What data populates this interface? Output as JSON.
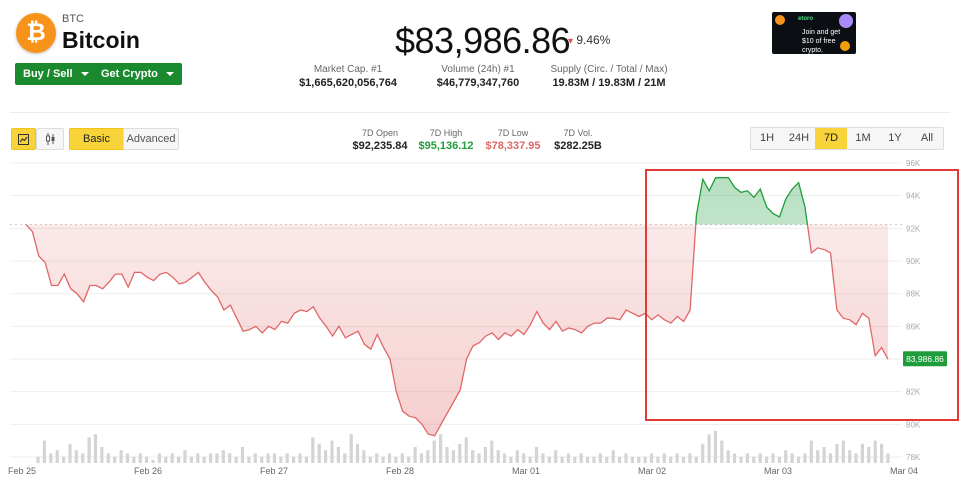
{
  "coin": {
    "symbol": "BTC",
    "name": "Bitcoin",
    "logo_glyph": "₿",
    "logo_color": "#f7931a"
  },
  "actions": {
    "buy_sell": "Buy / Sell",
    "get_crypto": "Get Crypto"
  },
  "price": {
    "value": "$83,986.86",
    "change": "9.46%",
    "change_arrow": "▾"
  },
  "stats": [
    {
      "label": "Market Cap. #1",
      "value": "$1,665,620,056,764"
    },
    {
      "label": "Volume (24h) #1",
      "value": "$46,779,347,760"
    },
    {
      "label": "Supply (Circ. / Total / Max)",
      "value": "19.83M / 19.83M / 21M"
    }
  ],
  "ad": {
    "brand": "etoro",
    "text_line1": "Join and get",
    "text_line2": "$10 of free crypto."
  },
  "chart_controls": {
    "view_basic": "Basic",
    "view_advanced": "Advanced",
    "icon_line": "line-chart-icon",
    "icon_candle": "candlestick-icon"
  },
  "seven_day": {
    "open": {
      "label": "7D Open",
      "value": "$92,235.84"
    },
    "high": {
      "label": "7D High",
      "value": "$95,136.12"
    },
    "low": {
      "label": "7D Low",
      "value": "$78,337.95"
    },
    "vol": {
      "label": "7D Vol.",
      "value": "$282.25B"
    }
  },
  "ranges": [
    "1H",
    "24H",
    "7D",
    "1M",
    "1Y",
    "All"
  ],
  "active_range": "7D",
  "colors": {
    "accent": "#f8d33a",
    "buy": "#1b8a2e",
    "down": "#e06767",
    "up": "#1f9d3c",
    "highlight_box": "#e53935"
  },
  "chart_data": {
    "type": "line",
    "x_ticks": [
      "Feb 25",
      "Feb 26",
      "Feb 27",
      "Feb 28",
      "Mar 01",
      "Mar 02",
      "Mar 03",
      "Mar 04"
    ],
    "y_ticks": [
      "96K",
      "94K",
      "92K",
      "90K",
      "88K",
      "86K",
      "84K",
      "82K",
      "80K",
      "78K"
    ],
    "ylim": [
      78000,
      96000
    ],
    "reference_open": 92235.84,
    "current_label": "83,986.86",
    "series": [
      {
        "values": [
          92235.84,
          91800,
          90300,
          89900,
          88500,
          88500,
          89200,
          88300,
          88000,
          87500,
          88500,
          88500,
          88300,
          88700,
          89200,
          89200,
          88400,
          89300,
          89300,
          89000,
          88800,
          89200,
          89300,
          89000,
          88600,
          88700,
          89000,
          89300,
          88700,
          88200,
          87800,
          87000,
          87300,
          86500,
          85700,
          85800,
          86000,
          85600,
          86000,
          85800,
          86300,
          86200,
          86800,
          87000,
          86900,
          87200,
          86500,
          86000,
          85400,
          86000,
          85300,
          85500,
          85700,
          84900,
          84600,
          85500,
          84700,
          84000,
          82000,
          80800,
          80500,
          80400,
          80000,
          79400,
          79300,
          80000,
          80700,
          81400,
          82100,
          84000,
          84800,
          85000,
          85400,
          85600,
          85200,
          85600,
          85400,
          85800,
          85500,
          86100,
          86900,
          86200,
          85800,
          86300,
          85700,
          85900,
          85800,
          85600,
          86000,
          86200,
          86200,
          86500,
          86500,
          86400,
          87000,
          86800,
          86600,
          86800,
          86400,
          86700,
          86400,
          86200,
          86600,
          86300,
          87000,
          92800,
          95000,
          94300,
          95100,
          95100,
          95100,
          94500,
          94200,
          94300,
          93900,
          94400,
          93300,
          92900,
          92700,
          93800,
          94400,
          94800,
          93300,
          90500,
          90800,
          90700,
          90500,
          87000,
          86500,
          86400,
          86100,
          86800,
          86500,
          84200,
          84700,
          83986.86
        ]
      }
    ],
    "volume": [
      0.2,
      0.7,
      0.3,
      0.4,
      0.2,
      0.6,
      0.4,
      0.3,
      0.8,
      0.9,
      0.5,
      0.3,
      0.2,
      0.4,
      0.3,
      0.2,
      0.3,
      0.2,
      0.1,
      0.3,
      0.2,
      0.3,
      0.2,
      0.4,
      0.2,
      0.3,
      0.2,
      0.3,
      0.3,
      0.4,
      0.3,
      0.2,
      0.5,
      0.2,
      0.3,
      0.2,
      0.3,
      0.3,
      0.2,
      0.3,
      0.2,
      0.3,
      0.2,
      0.8,
      0.6,
      0.4,
      0.7,
      0.5,
      0.3,
      0.9,
      0.6,
      0.4,
      0.2,
      0.3,
      0.2,
      0.3,
      0.2,
      0.3,
      0.2,
      0.5,
      0.3,
      0.4,
      0.7,
      0.9,
      0.5,
      0.4,
      0.6,
      0.8,
      0.4,
      0.3,
      0.5,
      0.7,
      0.4,
      0.3,
      0.2,
      0.4,
      0.3,
      0.2,
      0.5,
      0.3,
      0.2,
      0.4,
      0.2,
      0.3,
      0.2,
      0.3,
      0.2,
      0.2,
      0.3,
      0.2,
      0.4,
      0.2,
      0.3,
      0.2,
      0.2,
      0.2,
      0.3,
      0.2,
      0.3,
      0.2,
      0.3,
      0.2,
      0.3,
      0.2,
      0.6,
      0.9,
      1.0,
      0.7,
      0.4,
      0.3,
      0.2,
      0.3,
      0.2,
      0.3,
      0.2,
      0.3,
      0.2,
      0.4,
      0.3,
      0.2,
      0.3,
      0.7,
      0.4,
      0.5,
      0.3,
      0.6,
      0.7,
      0.4,
      0.3,
      0.6,
      0.5,
      0.7,
      0.6,
      0.3
    ]
  }
}
